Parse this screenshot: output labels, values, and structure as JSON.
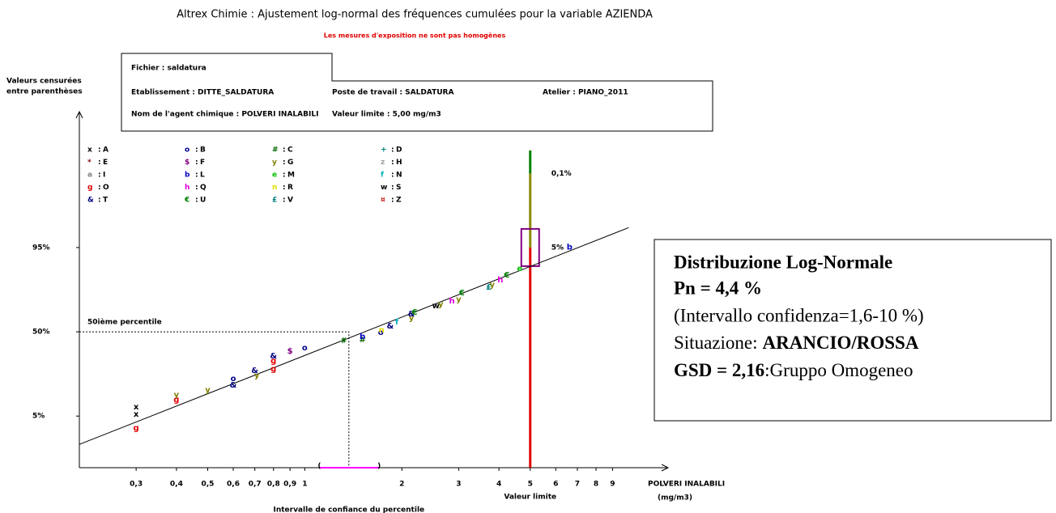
{
  "chart_data": {
    "type": "scatter",
    "title": "Altrex Chimie : Ajustement log-normal des fréquences cumulées pour la variable AZIENDA",
    "subtitle": "Les mesures d'exposition ne sont pas homogènes",
    "y_label": [
      "Valeurs censurées",
      "entre parenthèses"
    ],
    "x_label": [
      "POLVERI INALABILI",
      "(mg/m3)"
    ],
    "x_log": true,
    "y_scale": "probability",
    "xlim": [
      0.2,
      13
    ],
    "ylim": [
      0.4,
      99.999
    ],
    "xticks": [
      {
        "value": 0.3,
        "label": "0,3"
      },
      {
        "value": 0.4,
        "label": "0,4"
      },
      {
        "value": 0.5,
        "label": "0,5"
      },
      {
        "value": 0.6,
        "label": "0,6"
      },
      {
        "value": 0.7,
        "label": "0,7"
      },
      {
        "value": 0.8,
        "label": "0,8"
      },
      {
        "value": 0.9,
        "label": "0,9"
      },
      1,
      2,
      3,
      4,
      5,
      6,
      7,
      8,
      9
    ],
    "yticks": [
      {
        "value": 5,
        "label": "5%"
      },
      {
        "value": 50,
        "label": "50%"
      },
      {
        "value": 95,
        "label": "95%"
      }
    ],
    "legend_separator": ":",
    "series": [
      {
        "name": "A",
        "marker": "x",
        "color": "#000000",
        "x": [
          0.3,
          0.3
        ],
        "values": [
          7.1,
          5.4
        ]
      },
      {
        "name": "B",
        "marker": "o",
        "color": "#00008b",
        "x": [
          0.6,
          1.0,
          1.72
        ],
        "values": [
          18.0,
          37.6,
          49.4
        ]
      },
      {
        "name": "C",
        "marker": "#",
        "color": "#006400",
        "x": [
          1.32,
          1.51
        ],
        "values": [
          43.1,
          43.7
        ]
      },
      {
        "name": "D",
        "marker": "+",
        "color": "#008080",
        "x": [],
        "values": []
      },
      {
        "name": "E",
        "marker": "*",
        "color": "#8b0000",
        "x": [],
        "values": []
      },
      {
        "name": "F",
        "marker": "$",
        "color": "#800080",
        "x": [
          0.9
        ],
        "values": [
          35.2
        ]
      },
      {
        "name": "G",
        "marker": "y",
        "color": "#808000",
        "x": [
          0.4,
          0.5,
          0.71,
          2.14,
          2.64,
          3.0,
          3.81
        ],
        "values": [
          10.9,
          12.8,
          19.7,
          60.6,
          70.4,
          73.6,
          82.0
        ]
      },
      {
        "name": "H",
        "marker": "z",
        "color": "#a0a0a0",
        "x": [],
        "values": []
      },
      {
        "name": "I",
        "marker": "a",
        "color": "#808080",
        "x": [],
        "values": []
      },
      {
        "name": "L",
        "marker": "b",
        "color": "#0000c0",
        "x": [
          1.51,
          6.62
        ],
        "values": [
          46.2,
          95.1
        ]
      },
      {
        "name": "M",
        "marker": "e",
        "color": "#00c000",
        "x": [
          4.64
        ],
        "values": [
          89.1
        ]
      },
      {
        "name": "N",
        "marker": "f",
        "color": "#00b0c0",
        "x": [
          1.93
        ],
        "values": [
          57.5
        ]
      },
      {
        "name": "O",
        "marker": "g",
        "color": "#e00000",
        "x": [
          0.3,
          0.4,
          0.8,
          0.8
        ],
        "values": [
          3.0,
          9.2,
          28.5,
          23.4
        ]
      },
      {
        "name": "Q",
        "marker": "h",
        "color": "#e000e0",
        "x": [
          2.86,
          4.04
        ],
        "values": [
          72.6,
          84.4
        ]
      },
      {
        "name": "R",
        "marker": "n",
        "color": "#e0e000",
        "x": [
          1.73
        ],
        "values": [
          51.3
        ]
      },
      {
        "name": "S",
        "marker": "w",
        "color": "#000000",
        "x": [
          2.55
        ],
        "values": [
          69.3
        ]
      },
      {
        "name": "T",
        "marker": "&",
        "color": "#000080",
        "x": [
          0.6,
          0.7,
          0.8,
          1.84,
          2.14
        ],
        "values": [
          14.9,
          22.4,
          31.8,
          54.4,
          63.6
        ]
      },
      {
        "name": "U",
        "marker": "€",
        "color": "#008000",
        "x": [
          2.19,
          3.07,
          4.23
        ],
        "values": [
          64.8,
          77.6,
          86.6
        ]
      },
      {
        "name": "V",
        "marker": "£",
        "color": "#008080",
        "x": [
          3.72
        ],
        "values": [
          80.8
        ]
      },
      {
        "name": "Z",
        "marker": "¤",
        "color": "#c00000",
        "x": [],
        "values": []
      }
    ],
    "fit_line": {
      "color": "#000000",
      "x": [
        0.2,
        10.1
      ],
      "values": [
        1.4,
        97.9
      ]
    },
    "percentile_50": {
      "label": "50ième percentile",
      "x": 1.37,
      "y": 50
    },
    "ci": {
      "label": "Intervalle de confiance du percentile",
      "low": 1.11,
      "high": 1.7,
      "open": "(",
      "close": ")",
      "color": "#ff00ff"
    },
    "limit": {
      "x": 5,
      "label": "Valeur limite",
      "segments": [
        {
          "from": 0.4,
          "to": 95,
          "color": "#e00000"
        },
        {
          "from": 95,
          "to": 99.9,
          "color": "#8a8a00"
        },
        {
          "from": 99.9,
          "to": 99.98,
          "color": "#008000"
        }
      ],
      "annotations": [
        {
          "y": 95,
          "label": "5%"
        },
        {
          "y": 99.9,
          "label": "0,1%"
        }
      ]
    }
  },
  "header": {
    "file": "Fichier : saldatura",
    "establishment": "Etablissement : DITTE_SALDATURA",
    "workstation": "Poste de travail : SALDATURA",
    "workshop": "Atelier : PIANO_2011",
    "agent": "Nom de l'agent chimique : POLVERI INALABILI",
    "limit": "Valeur limite : 5,00 mg/m3"
  },
  "result": {
    "title": "Distribuzione Log-Normale",
    "pn": "Pn = 4,4 %",
    "ci": "(Intervallo confidenza=1,6-10 %)",
    "situation_label": "Situazione:",
    "situation": "ARANCIO/ROSSA",
    "gsd": "GSD = 2,16",
    "group": ":Gruppo Omogeneo"
  }
}
